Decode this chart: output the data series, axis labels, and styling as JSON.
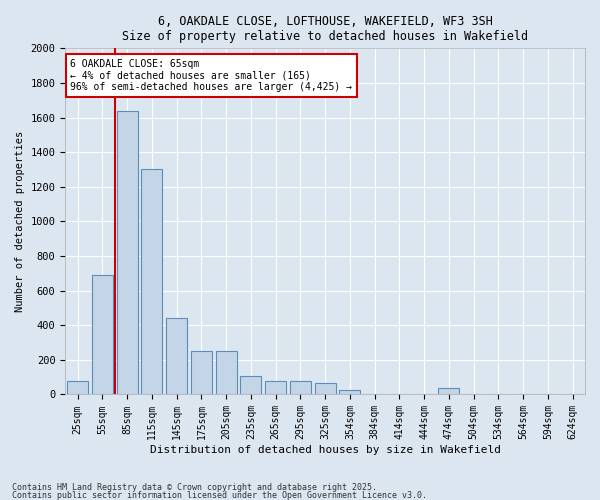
{
  "title_line1": "6, OAKDALE CLOSE, LOFTHOUSE, WAKEFIELD, WF3 3SH",
  "title_line2": "Size of property relative to detached houses in Wakefield",
  "xlabel": "Distribution of detached houses by size in Wakefield",
  "ylabel": "Number of detached properties",
  "categories": [
    "25sqm",
    "55sqm",
    "85sqm",
    "115sqm",
    "145sqm",
    "175sqm",
    "205sqm",
    "235sqm",
    "265sqm",
    "295sqm",
    "325sqm",
    "354sqm",
    "384sqm",
    "414sqm",
    "444sqm",
    "474sqm",
    "504sqm",
    "534sqm",
    "564sqm",
    "594sqm",
    "624sqm"
  ],
  "values": [
    75,
    690,
    1640,
    1300,
    440,
    250,
    250,
    105,
    80,
    75,
    65,
    25,
    0,
    0,
    0,
    35,
    0,
    0,
    0,
    0,
    0
  ],
  "bar_color": "#c5d5e8",
  "bar_edge_color": "#5b8db8",
  "subject_line_color": "#cc0000",
  "annotation_text": "6 OAKDALE CLOSE: 65sqm\n← 4% of detached houses are smaller (165)\n96% of semi-detached houses are larger (4,425) →",
  "annotation_box_color": "#cc0000",
  "ylim": [
    0,
    2000
  ],
  "yticks": [
    0,
    200,
    400,
    600,
    800,
    1000,
    1200,
    1400,
    1600,
    1800,
    2000
  ],
  "grid_color": "#ffffff",
  "bg_color": "#dce6f0",
  "footer_line1": "Contains HM Land Registry data © Crown copyright and database right 2025.",
  "footer_line2": "Contains public sector information licensed under the Open Government Licence v3.0."
}
